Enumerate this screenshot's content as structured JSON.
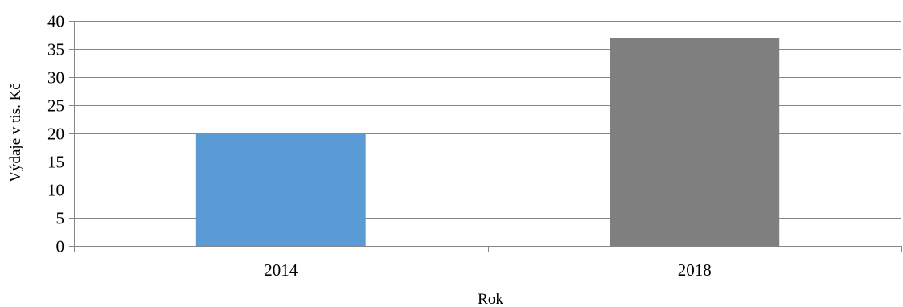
{
  "chart_data": {
    "type": "bar",
    "categories": [
      "2014",
      "2018"
    ],
    "values": [
      20,
      37
    ],
    "colors": [
      "#5b9bd5",
      "#7f7f7f"
    ],
    "xlabel": "Rok",
    "ylabel": "Výdaje v tis. Kč",
    "ylim": [
      0,
      40
    ],
    "yticks": [
      0,
      5,
      10,
      15,
      20,
      25,
      30,
      35,
      40
    ],
    "grid": true,
    "gridline_color": "#868686",
    "legend": false
  }
}
